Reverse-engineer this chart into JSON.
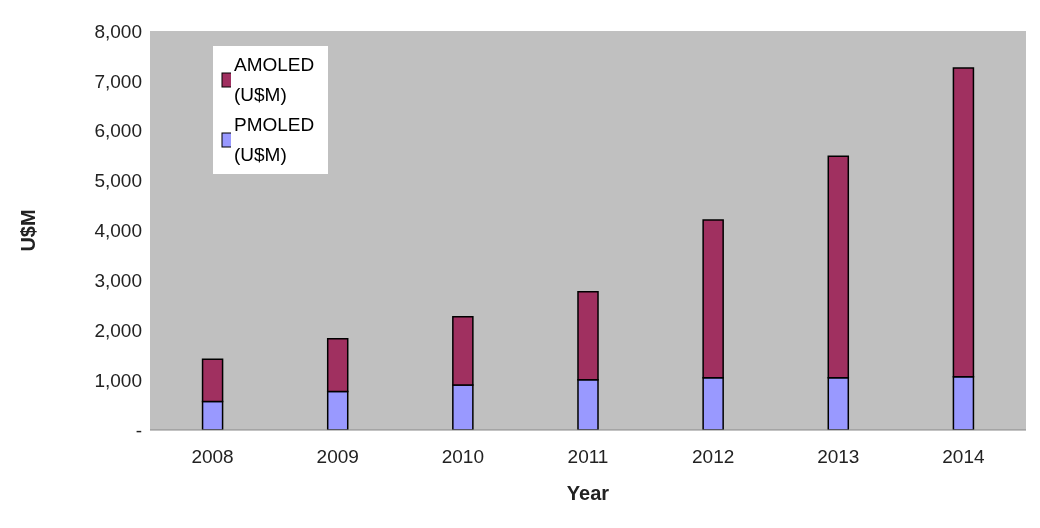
{
  "chart_data": {
    "type": "bar",
    "stacked": true,
    "xlabel": "Year",
    "ylabel": "U$M",
    "categories": [
      "2008",
      "2009",
      "2010",
      "2011",
      "2012",
      "2013",
      "2014"
    ],
    "series": [
      {
        "name": "PMOLED (U$M)",
        "color": "#9999ff",
        "values": [
          570,
          770,
          900,
          1010,
          1050,
          1050,
          1070
        ]
      },
      {
        "name": "AMOLED (U$M)",
        "color": "#a03060",
        "values": [
          850,
          1060,
          1370,
          1760,
          3160,
          4440,
          6190
        ]
      }
    ],
    "ylim": [
      0,
      8000
    ],
    "yticks": [
      {
        "value": 0,
        "label": "-"
      },
      {
        "value": 1000,
        "label": "1,000"
      },
      {
        "value": 2000,
        "label": "2,000"
      },
      {
        "value": 3000,
        "label": "3,000"
      },
      {
        "value": 4000,
        "label": "4,000"
      },
      {
        "value": 5000,
        "label": "5,000"
      },
      {
        "value": 6000,
        "label": "6,000"
      },
      {
        "value": 7000,
        "label": "7,000"
      },
      {
        "value": 8000,
        "label": "8,000"
      }
    ],
    "grid": false,
    "legend": "top left"
  }
}
